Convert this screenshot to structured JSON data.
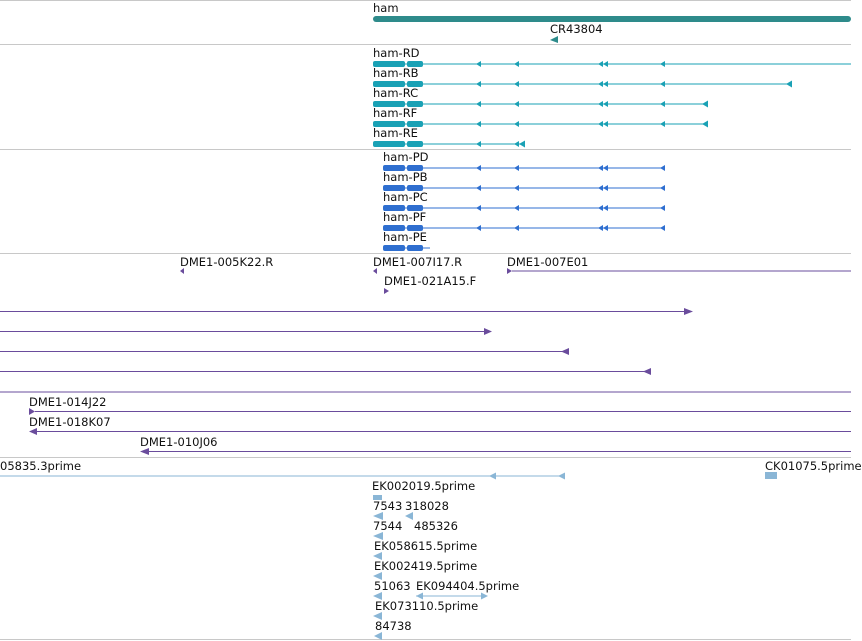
{
  "colors": {
    "gene": "#2e8b8b",
    "transcript": "#1aa1b5",
    "protein": "#2f6fd0",
    "clone": "#6a4c9c",
    "est": "#8ab6d6",
    "separator": "#c8c8c8"
  },
  "genes": {
    "ham": "ham",
    "cr": "CR43804"
  },
  "transcripts": [
    "ham-RD",
    "ham-RB",
    "ham-RC",
    "ham-RF",
    "ham-RE"
  ],
  "proteins": [
    "ham-PD",
    "ham-PB",
    "ham-PC",
    "ham-PF",
    "ham-PE"
  ],
  "clones": {
    "c005": "DME1-005K22.R",
    "c007i": "DME1-007I17.R",
    "c007e": "DME1-007E01",
    "c021": "DME1-021A15.F",
    "c014": "DME1-014J22",
    "c018": "DME1-018K07",
    "c010": "DME1-010J06"
  },
  "ests": {
    "e05835": "05835.3prime",
    "ck01075": "CK01075.5prime",
    "ek002019": "EK002019.5prime",
    "n7543": "7543",
    "n318028": "318028",
    "n7544": "7544",
    "n485326": "485326",
    "ek058615": "EK058615.5prime",
    "ek002419": "EK002419.5prime",
    "n51063": "51063",
    "ek094404": "EK094404.5prime",
    "ek073110": "EK073110.5prime",
    "n84738": "84738"
  }
}
